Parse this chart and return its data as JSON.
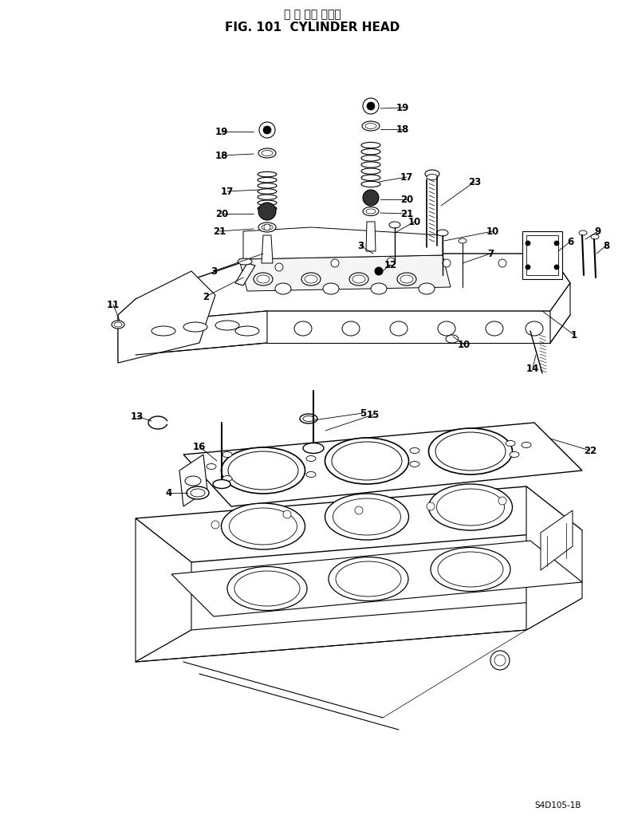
{
  "title_japanese": "シ リ ンダ ヘッド",
  "title_english": "FIG. 101  CYLINDER HEAD",
  "footer": "S4D105-1B",
  "bg_color": "#ffffff",
  "lc": "#000000",
  "title_fontsize": 10,
  "title_bold_fontsize": 11,
  "footer_fontsize": 7.5
}
